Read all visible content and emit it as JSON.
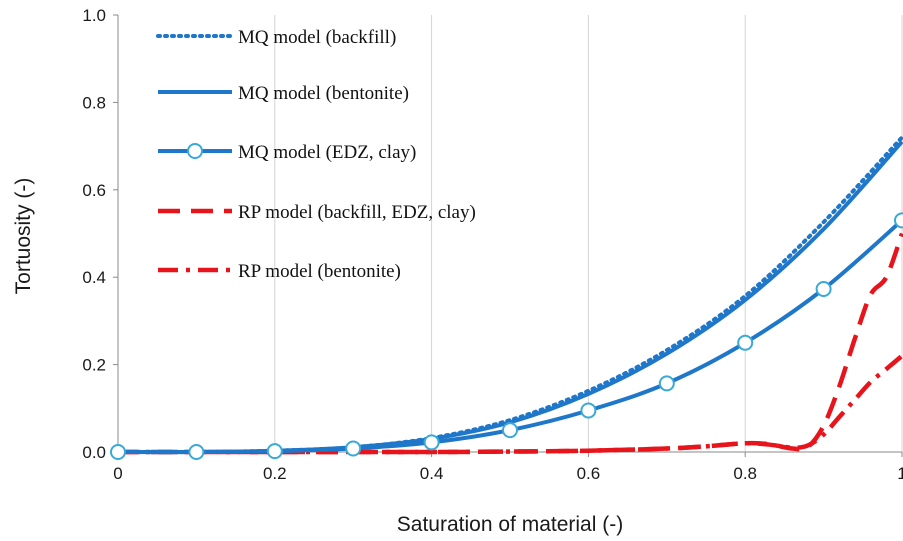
{
  "chart_data": {
    "type": "line",
    "xlabel": "Saturation of material (-)",
    "ylabel": "Tortuosity (-)",
    "xlim": [
      0,
      1
    ],
    "ylim": [
      0,
      1
    ],
    "xticks": [
      "0",
      "0.2",
      "0.4",
      "0.6",
      "0.8",
      "1"
    ],
    "yticks": [
      "0.0",
      "0.2",
      "0.4",
      "0.6",
      "0.8",
      "1.0"
    ],
    "grid": "vertical",
    "legend_position": "top-left",
    "colors": {
      "mq": "#1f77c9",
      "rp": "#e8141c"
    },
    "series": [
      {
        "name": "MQ model (backfill)",
        "style": "dotted",
        "x": [
          0,
          0.1,
          0.2,
          0.3,
          0.4,
          0.5,
          0.6,
          0.7,
          0.8,
          0.9,
          1.0
        ],
        "y": [
          0,
          0.0,
          0.003,
          0.011,
          0.032,
          0.073,
          0.14,
          0.233,
          0.357,
          0.526,
          0.72
        ]
      },
      {
        "name": "MQ model (bentonite)",
        "style": "solid",
        "x": [
          0,
          0.1,
          0.2,
          0.3,
          0.4,
          0.5,
          0.6,
          0.7,
          0.8,
          0.9,
          1.0
        ],
        "y": [
          0,
          0.0,
          0.003,
          0.011,
          0.03,
          0.068,
          0.133,
          0.225,
          0.348,
          0.51,
          0.71
        ]
      },
      {
        "name": "MQ model (EDZ, clay)",
        "style": "solid-circle",
        "x": [
          0,
          0.1,
          0.2,
          0.3,
          0.4,
          0.5,
          0.6,
          0.7,
          0.8,
          0.9,
          1.0
        ],
        "y": [
          0,
          0.0,
          0.002,
          0.008,
          0.022,
          0.05,
          0.095,
          0.157,
          0.25,
          0.373,
          0.53
        ]
      },
      {
        "name": "RP model (backfill, EDZ, clay)",
        "style": "dashed",
        "x": [
          0,
          0.1,
          0.2,
          0.3,
          0.4,
          0.5,
          0.6,
          0.7,
          0.75,
          0.8,
          0.83,
          0.86,
          0.88,
          0.9,
          0.92,
          0.94,
          0.96,
          0.98,
          1.0
        ],
        "y": [
          0,
          0,
          0,
          0,
          0,
          0.001,
          0.003,
          0.008,
          0.013,
          0.02,
          0.018,
          0.008,
          0.012,
          0.06,
          0.15,
          0.26,
          0.36,
          0.4,
          0.5
        ]
      },
      {
        "name": "RP model (bentonite)",
        "style": "dashdot",
        "x": [
          0,
          0.1,
          0.2,
          0.3,
          0.4,
          0.5,
          0.6,
          0.7,
          0.75,
          0.8,
          0.83,
          0.86,
          0.88,
          0.9,
          0.92,
          0.94,
          0.96,
          0.98,
          1.0
        ],
        "y": [
          0,
          0,
          0,
          0,
          0,
          0.001,
          0.003,
          0.008,
          0.013,
          0.02,
          0.017,
          0.01,
          0.015,
          0.04,
          0.08,
          0.12,
          0.16,
          0.19,
          0.22
        ]
      }
    ]
  }
}
